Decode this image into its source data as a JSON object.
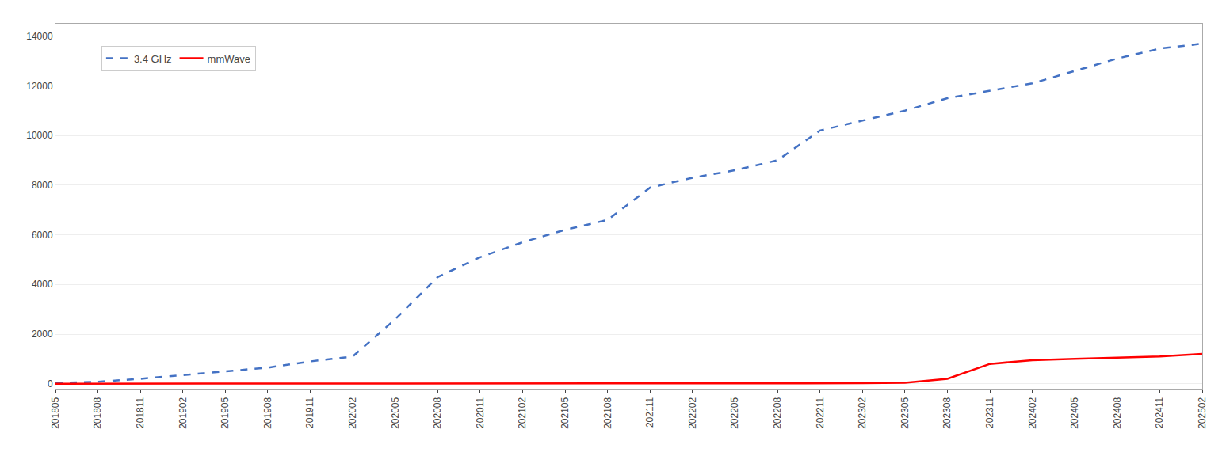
{
  "chart_data": {
    "type": "line",
    "categories": [
      "201805",
      "201808",
      "201811",
      "201902",
      "201905",
      "201908",
      "201911",
      "202002",
      "202005",
      "202008",
      "202011",
      "202102",
      "202105",
      "202108",
      "202111",
      "202202",
      "202205",
      "202208",
      "202211",
      "202302",
      "202305",
      "202308",
      "202311",
      "202402",
      "202405",
      "202408",
      "202411",
      "202502"
    ],
    "series": [
      {
        "name": "3.4 GHz",
        "color": "#4472C4",
        "line_style": "dashed",
        "values": [
          30,
          80,
          200,
          350,
          500,
          650,
          900,
          1100,
          2600,
          4300,
          5100,
          5700,
          6200,
          6600,
          7900,
          8300,
          8600,
          9000,
          10200,
          10600,
          11000,
          11500,
          11800,
          12100,
          12600,
          13100,
          13500,
          13700
        ]
      },
      {
        "name": "mmWave",
        "color": "#FF0000",
        "line_style": "solid",
        "values": [
          2,
          2,
          2,
          2,
          2,
          2,
          2,
          2,
          2,
          2,
          2,
          2,
          2,
          2,
          2,
          2,
          2,
          5,
          10,
          20,
          40,
          200,
          800,
          950,
          1000,
          1050,
          1100,
          1200
        ]
      }
    ],
    "ylim": [
      -200,
      14500
    ],
    "yticks": [
      0,
      2000,
      4000,
      6000,
      8000,
      10000,
      12000,
      14000
    ],
    "grid": "y",
    "legend": "upper left"
  }
}
